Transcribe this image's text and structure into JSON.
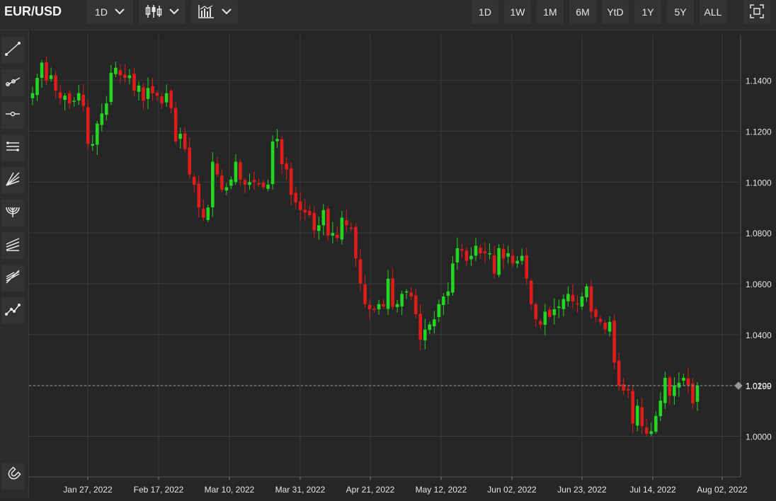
{
  "toolbar": {
    "symbol": "EUR/USD",
    "interval_label": "1D",
    "chart_type_icon": "candlestick-icon",
    "indicators_icon": "bar-chart-icon",
    "ranges": [
      "1D",
      "1W",
      "1M",
      "6M",
      "YtD",
      "1Y",
      "5Y",
      "ALL"
    ],
    "fullscreen_icon": "fullscreen-icon"
  },
  "tools": [
    "trend-line-icon",
    "ray-icon",
    "horizontal-line-icon",
    "parallel-channel-icon",
    "fan-icon",
    "arc-icon",
    "pitchfork-icon",
    "fibonacci-icon",
    "path-icon"
  ],
  "bottom_tool": "magnet-icon",
  "colors": {
    "up": "#22d622",
    "down": "#e01b1b",
    "grid": "#3a3a3a",
    "background": "#262626"
  },
  "chart_data": {
    "type": "candlestick",
    "y_ticks": [
      "1.1400",
      "1.1200",
      "1.1000",
      "1.0800",
      "1.0600",
      "1.0400",
      "1.0200",
      "1.0000"
    ],
    "ylim": [
      0.984,
      1.158
    ],
    "x_ticks": [
      "Jan 27, 2022",
      "Feb 17, 2022",
      "Mar 10, 2022",
      "Mar 31, 2022",
      "Apr 21, 2022",
      "May 12, 2022",
      "Jun 02, 2022",
      "Jun 23, 2022",
      "Jul 14, 2022",
      "Aug 02, 2022"
    ],
    "last_price": "1.0199",
    "last_value": 1.0199,
    "closes": [
      1.135,
      1.141,
      1.147,
      1.14,
      1.142,
      1.136,
      1.133,
      1.134,
      1.131,
      1.132,
      1.135,
      1.13,
      1.115,
      1.115,
      1.123,
      1.127,
      1.131,
      1.143,
      1.145,
      1.142,
      1.141,
      1.142,
      1.136,
      1.138,
      1.132,
      1.137,
      1.135,
      1.134,
      1.131,
      1.135,
      1.129,
      1.116,
      1.119,
      1.113,
      1.103,
      1.099,
      1.09,
      1.086,
      1.09,
      1.108,
      1.103,
      1.097,
      1.098,
      1.101,
      1.108,
      1.101,
      1.099,
      1.1,
      1.1,
      1.099,
      1.098,
      1.099,
      1.116,
      1.117,
      1.107,
      1.105,
      1.095,
      1.092,
      1.089,
      1.088,
      1.087,
      1.081,
      1.083,
      1.089,
      1.079,
      1.08,
      1.078,
      1.086,
      1.083,
      1.082,
      1.07,
      1.06,
      1.052,
      1.05,
      1.05,
      1.052,
      1.051,
      1.062,
      1.051,
      1.052,
      1.056,
      1.057,
      1.055,
      1.048,
      1.038,
      1.042,
      1.044,
      1.046,
      1.052,
      1.055,
      1.057,
      1.068,
      1.074,
      1.073,
      1.069,
      1.071,
      1.075,
      1.072,
      1.072,
      1.072,
      1.064,
      1.074,
      1.07,
      1.072,
      1.068,
      1.069,
      1.071,
      1.062,
      1.052,
      1.046,
      1.044,
      1.049,
      1.047,
      1.05,
      1.051,
      1.054,
      1.056,
      1.053,
      1.052,
      1.055,
      1.059,
      1.049,
      1.047,
      1.045,
      1.042,
      1.045,
      1.029,
      1.02,
      1.018,
      1.018,
      1.005,
      1.012,
      1.004,
      1.001,
      1.002,
      1.008,
      1.014,
      1.023,
      1.016,
      1.02,
      1.021,
      1.023,
      1.02,
      1.013,
      1.0199
    ]
  }
}
